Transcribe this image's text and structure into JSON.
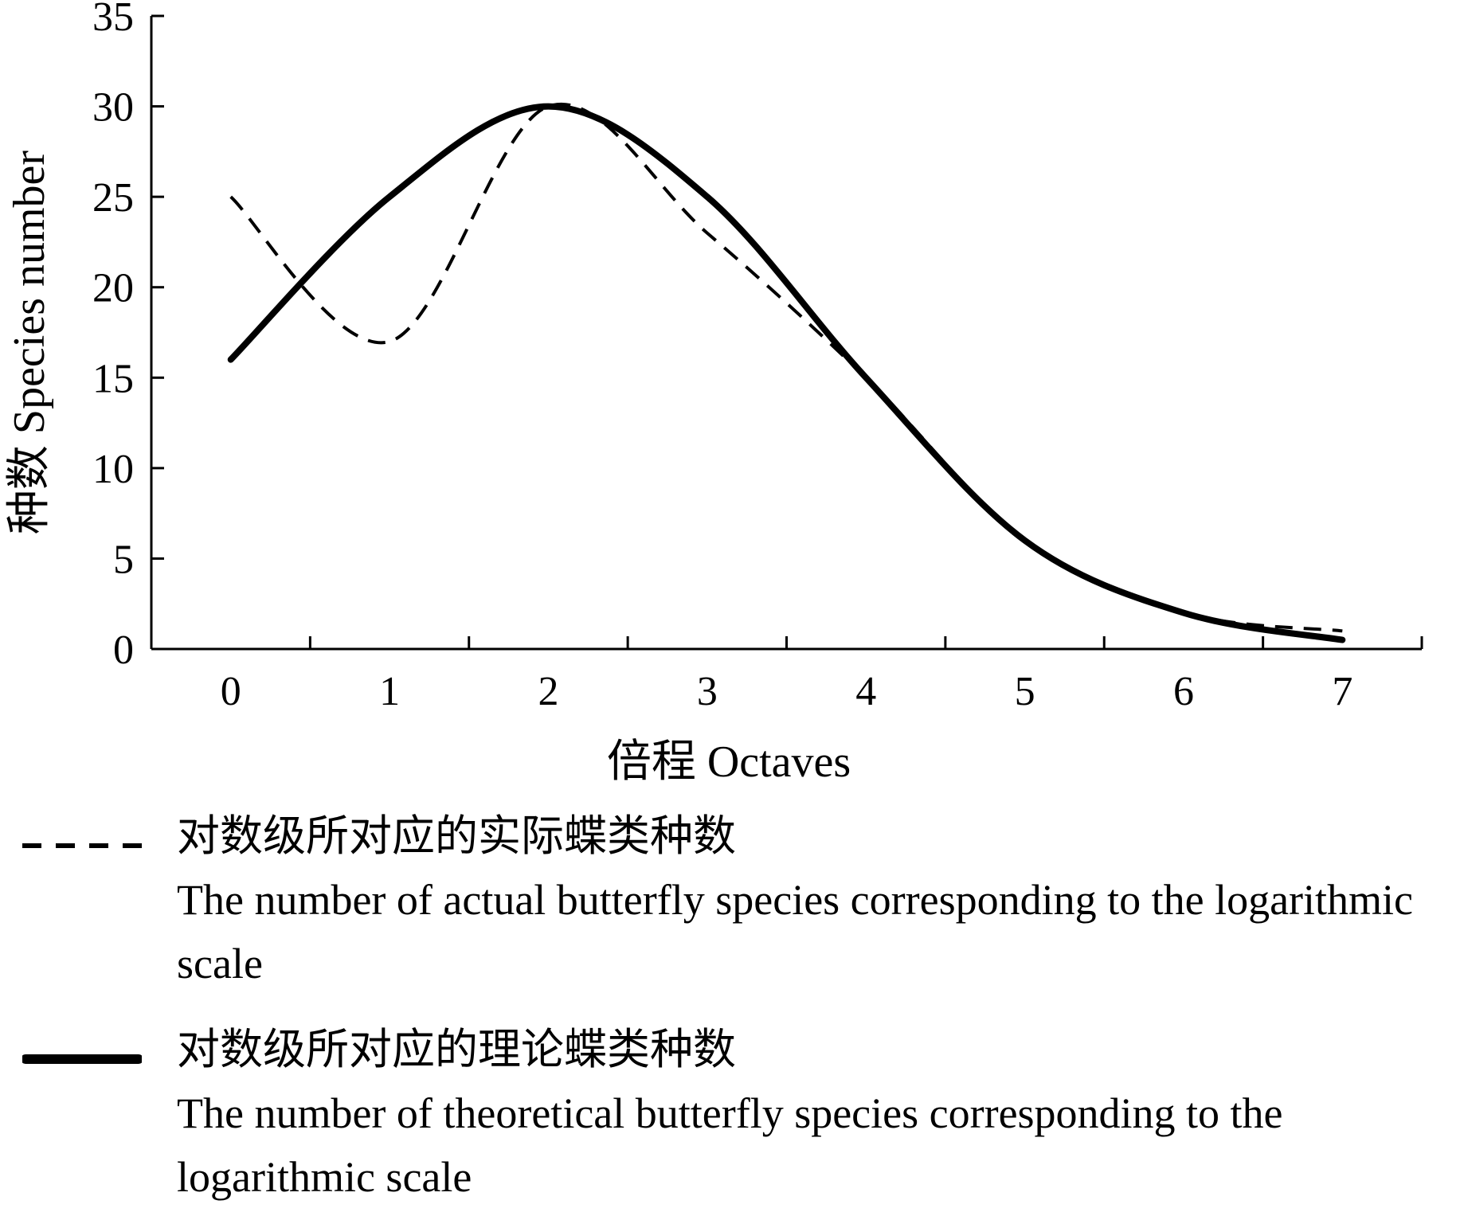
{
  "chart_data": {
    "type": "line",
    "xlabel": "倍程 Octaves",
    "ylabel": "种数 Species number",
    "xlim": [
      -0.5,
      7.5
    ],
    "ylim": [
      0,
      35
    ],
    "x_ticks": [
      0,
      1,
      2,
      3,
      4,
      5,
      6,
      7
    ],
    "y_ticks": [
      0,
      5,
      10,
      15,
      20,
      25,
      30,
      35
    ],
    "grid": false,
    "legend_position": "bottom",
    "series": [
      {
        "name_zh": "对数级所对应的实际蝶类种数",
        "name_en": "The number of actual butterfly species corresponding to the logarithmic scale",
        "style": "dashed",
        "color": "#000000",
        "x": [
          0,
          1,
          2,
          3,
          4,
          5,
          6,
          7
        ],
        "y": [
          25,
          17,
          30,
          23,
          15,
          6,
          2,
          1
        ]
      },
      {
        "name_zh": "对数级所对应的理论蝶类种数",
        "name_en": "The number of theoretical butterfly species corresponding to the logarithmic scale",
        "style": "solid",
        "color": "#000000",
        "x": [
          0,
          1,
          2,
          3,
          4,
          5,
          6,
          7
        ],
        "y": [
          16,
          25,
          30,
          25,
          15,
          6,
          2,
          0.5
        ]
      }
    ]
  }
}
